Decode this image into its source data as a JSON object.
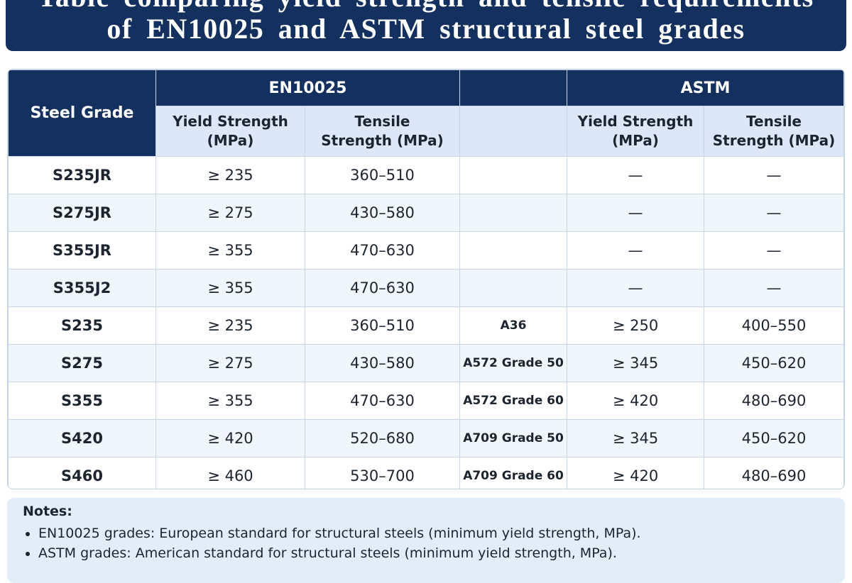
{
  "header": {
    "title_line1": "Table comparing yield strength and tensile requirements",
    "title_line2": "of EN10025 and ASTM structural steel grades"
  },
  "table": {
    "headers": {
      "steel_grade": "Steel Grade",
      "en": "EN10025",
      "astm": "ASTM",
      "en_yield": "Yield Strength (MPa)",
      "en_tensile": "Tensile Strength (MPa)",
      "astm_yield": "Yield Strength (MPa)",
      "astm_tensile": "Tensile Strength (MPa)"
    },
    "rows": [
      {
        "grade": "S235JR",
        "en_yield": "≥ 235",
        "en_tensile": "360–510",
        "astm_yield": "—",
        "astm_tensile": "—"
      },
      {
        "grade": "S275JR",
        "en_yield": "≥ 275",
        "en_tensile": "430–580",
        "astm_yield": "—",
        "astm_tensile": "—"
      },
      {
        "grade": "S355JR",
        "en_yield": "≥ 355",
        "en_tensile": "470–630",
        "astm_yield": "—",
        "astm_tensile": "—"
      },
      {
        "grade": "S355J2",
        "en_yield": "≥ 355",
        "en_tensile": "470–630",
        "astm_yield": "—",
        "astm_tensile": "—"
      },
      {
        "grade": "S235",
        "en_yield": "≥ 235",
        "en_tensile": "360–510",
        "astm_grade": "A36",
        "astm_yield": "≥ 250",
        "astm_tensile": "400–550"
      },
      {
        "grade": "S275",
        "en_yield": "≥ 275",
        "en_tensile": "430–580",
        "astm_grade": "A572 Grade 50",
        "astm_yield": "≥ 345",
        "astm_tensile": "450–620"
      },
      {
        "grade": "S355",
        "en_yield": "≥ 355",
        "en_tensile": "470–630",
        "astm_grade": "A572 Grade 60",
        "astm_yield": "≥ 420",
        "astm_tensile": "480–690"
      },
      {
        "grade": "S420",
        "en_yield": "≥ 420",
        "en_tensile": "520–680",
        "astm_grade": "A709 Grade 50",
        "astm_yield": "≥ 345",
        "astm_tensile": "450–620"
      },
      {
        "grade": "S460",
        "en_yield": "≥ 460",
        "en_tensile": "530–700",
        "astm_grade": "A709 Grade 60",
        "astm_yield": "≥ 420",
        "astm_tensile": "480–690"
      }
    ]
  },
  "notes": {
    "title": "Notes:",
    "items": [
      "EN10025 grades: European standard for structural steels (minimum yield strength, MPa).",
      "ASTM grades: American standard for structural steels (minimum yield strength, MPa)."
    ]
  }
}
